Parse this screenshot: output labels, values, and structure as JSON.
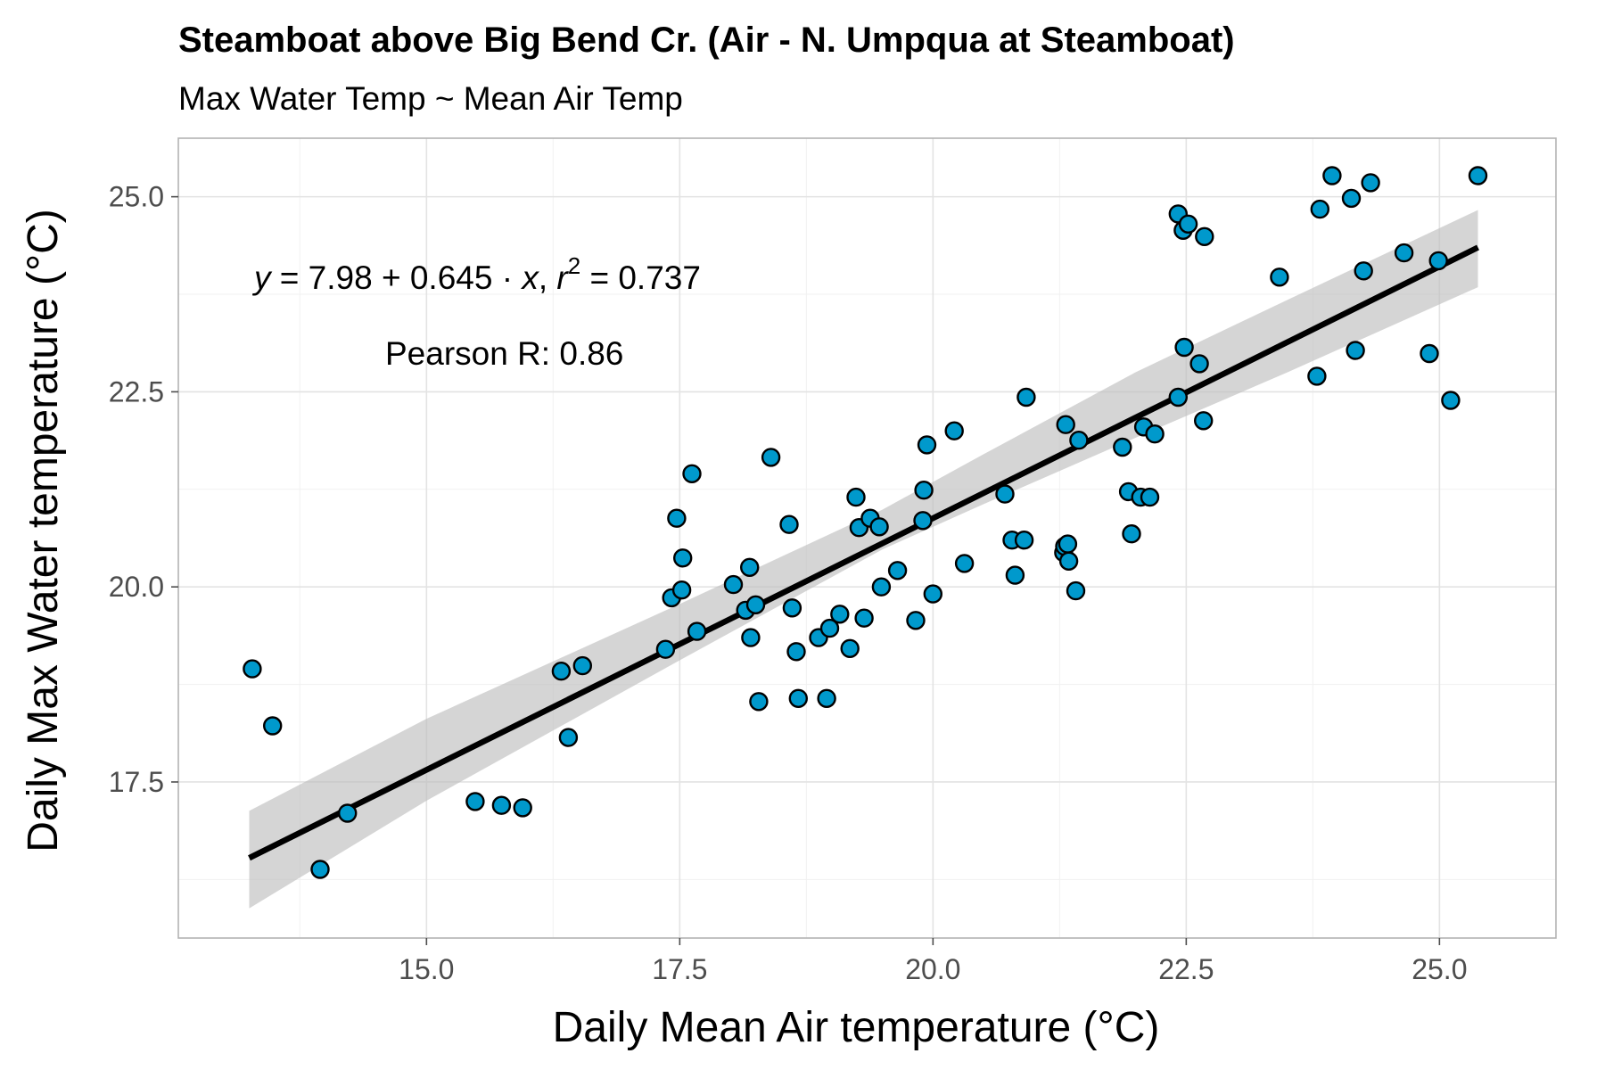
{
  "chart_data": {
    "type": "scatter",
    "title": "Steamboat above Big Bend Cr. (Air - N. Umpqua at Steamboat)",
    "subtitle": "Max Water Temp ~ Mean Air Temp",
    "xlabel": "Daily Mean Air temperature (°C)",
    "ylabel": "Daily Max Water temperature (°C)",
    "xlim": [
      12.55,
      26.15
    ],
    "ylim": [
      15.5,
      25.75
    ],
    "x_ticks": [
      "15.0",
      "17.5",
      "20.0",
      "22.5",
      "25.0"
    ],
    "x_tick_values": [
      15.0,
      17.5,
      20.0,
      22.5,
      25.0
    ],
    "y_ticks": [
      "17.5",
      "20.0",
      "22.5",
      "25.0"
    ],
    "y_tick_values": [
      17.5,
      20.0,
      22.5,
      25.0
    ],
    "grid": true,
    "point_color": "#0099cc",
    "fit": {
      "intercept": 7.98,
      "slope": 0.645,
      "x_range": [
        13.25,
        25.38
      ]
    },
    "confidence_band": {
      "color": "#bebebe",
      "x": [
        13.25,
        15.0,
        17.5,
        19.5,
        20.5,
        22.0,
        23.5,
        25.38
      ],
      "lower": [
        15.88,
        17.26,
        19.06,
        20.48,
        21.06,
        21.91,
        22.75,
        23.84
      ],
      "upper": [
        17.13,
        18.31,
        19.78,
        20.99,
        21.7,
        22.75,
        23.68,
        24.83
      ]
    },
    "equation_label": {
      "y": "y",
      "eq1": " = 7.98 + 0.645 · ",
      "x": "x",
      "comma": ",  ",
      "r": "r",
      "sup": "2",
      "eq2": " = 0.737"
    },
    "pearson_label": "Pearson R: 0.86",
    "points": [
      [
        13.28,
        18.95
      ],
      [
        13.48,
        18.22
      ],
      [
        13.95,
        16.38
      ],
      [
        14.22,
        17.1
      ],
      [
        15.48,
        17.25
      ],
      [
        15.74,
        17.2
      ],
      [
        15.95,
        17.17
      ],
      [
        16.33,
        18.92
      ],
      [
        16.4,
        18.07
      ],
      [
        16.54,
        18.99
      ],
      [
        17.36,
        19.2
      ],
      [
        17.42,
        19.86
      ],
      [
        17.47,
        20.88
      ],
      [
        17.52,
        19.96
      ],
      [
        17.53,
        20.37
      ],
      [
        17.62,
        21.45
      ],
      [
        17.67,
        19.43
      ],
      [
        18.03,
        20.03
      ],
      [
        18.15,
        19.7
      ],
      [
        18.19,
        20.25
      ],
      [
        18.2,
        19.35
      ],
      [
        18.25,
        19.77
      ],
      [
        18.28,
        18.53
      ],
      [
        18.4,
        21.66
      ],
      [
        18.58,
        20.8
      ],
      [
        18.61,
        19.73
      ],
      [
        18.65,
        19.17
      ],
      [
        18.67,
        18.57
      ],
      [
        18.87,
        19.35
      ],
      [
        18.95,
        18.57
      ],
      [
        18.98,
        19.47
      ],
      [
        19.08,
        19.65
      ],
      [
        19.18,
        19.21
      ],
      [
        19.24,
        21.15
      ],
      [
        19.27,
        20.76
      ],
      [
        19.32,
        19.6
      ],
      [
        19.38,
        20.88
      ],
      [
        19.47,
        20.77
      ],
      [
        19.49,
        20.0
      ],
      [
        19.65,
        20.21
      ],
      [
        19.83,
        19.57
      ],
      [
        19.9,
        20.85
      ],
      [
        19.91,
        21.24
      ],
      [
        19.94,
        21.82
      ],
      [
        20.0,
        19.91
      ],
      [
        20.21,
        22.0
      ],
      [
        20.31,
        20.3
      ],
      [
        20.71,
        21.19
      ],
      [
        20.78,
        20.6
      ],
      [
        20.81,
        20.15
      ],
      [
        20.9,
        20.6
      ],
      [
        20.92,
        22.43
      ],
      [
        21.29,
        20.44
      ],
      [
        21.3,
        20.52
      ],
      [
        21.31,
        22.08
      ],
      [
        21.33,
        20.55
      ],
      [
        21.34,
        20.33
      ],
      [
        21.41,
        19.95
      ],
      [
        21.44,
        21.88
      ],
      [
        21.87,
        21.79
      ],
      [
        21.93,
        21.22
      ],
      [
        21.96,
        20.68
      ],
      [
        22.05,
        21.15
      ],
      [
        22.08,
        22.05
      ],
      [
        22.14,
        21.15
      ],
      [
        22.19,
        21.96
      ],
      [
        22.42,
        22.43
      ],
      [
        22.42,
        24.78
      ],
      [
        22.47,
        24.57
      ],
      [
        22.48,
        23.07
      ],
      [
        22.52,
        24.65
      ],
      [
        22.63,
        22.86
      ],
      [
        22.67,
        22.13
      ],
      [
        22.68,
        24.49
      ],
      [
        23.42,
        23.97
      ],
      [
        23.79,
        22.7
      ],
      [
        23.82,
        24.84
      ],
      [
        23.94,
        25.27
      ],
      [
        24.13,
        24.98
      ],
      [
        24.17,
        23.03
      ],
      [
        24.25,
        24.05
      ],
      [
        24.32,
        25.18
      ],
      [
        24.65,
        24.28
      ],
      [
        24.9,
        22.99
      ],
      [
        24.99,
        24.18
      ],
      [
        25.11,
        22.39
      ],
      [
        25.38,
        25.27
      ]
    ]
  }
}
